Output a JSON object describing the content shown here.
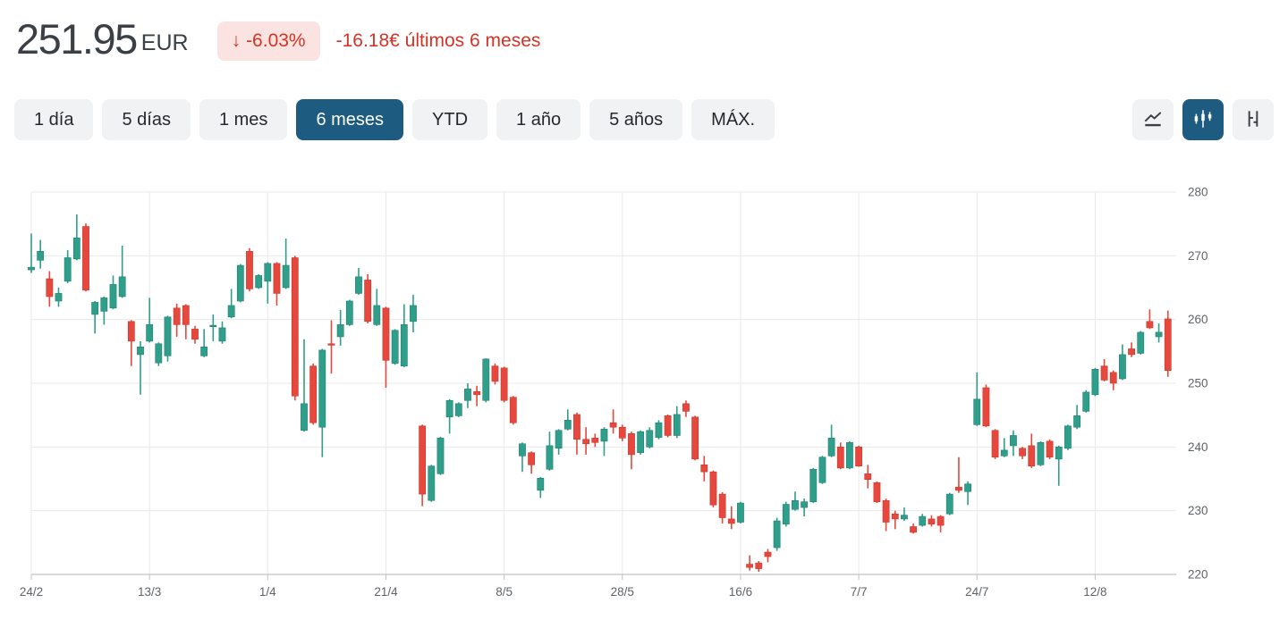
{
  "header": {
    "price": "251.95",
    "currency": "EUR",
    "change_arrow": "↓",
    "change_percent": "-6.03%",
    "change_text": "-16.18€ últimos 6 meses"
  },
  "toolbar": {
    "periods": [
      {
        "label": "1 día",
        "selected": false
      },
      {
        "label": "5 días",
        "selected": false
      },
      {
        "label": "1 mes",
        "selected": false
      },
      {
        "label": "6 meses",
        "selected": true
      },
      {
        "label": "YTD",
        "selected": false
      },
      {
        "label": "1 año",
        "selected": false
      },
      {
        "label": "5 años",
        "selected": false
      },
      {
        "label": "MÁX.",
        "selected": false
      }
    ],
    "chart_types": [
      {
        "icon": "line-chart-icon",
        "selected": false
      },
      {
        "icon": "candlestick-icon",
        "selected": true
      },
      {
        "icon": "ohlc-icon",
        "selected": false
      }
    ]
  },
  "colors": {
    "up": "#2f9e8b",
    "down": "#e6483d",
    "accent": "#1d5b80",
    "negative_text": "#d33426",
    "badge_bg": "#fbe3e1",
    "grid": "#e9e9eb",
    "axis": "#c2c2c6",
    "tick_text": "#5f6368"
  },
  "chart_data": {
    "type": "candlestick",
    "unit": "EUR",
    "period": "6 meses",
    "ylim": [
      220,
      280
    ],
    "y_ticks": [
      220,
      230,
      240,
      250,
      260,
      270,
      280
    ],
    "x_ticks": [
      {
        "label": "24/2",
        "index": 0
      },
      {
        "label": "13/3",
        "index": 13
      },
      {
        "label": "1/4",
        "index": 26
      },
      {
        "label": "21/4",
        "index": 39
      },
      {
        "label": "8/5",
        "index": 52
      },
      {
        "label": "28/5",
        "index": 65
      },
      {
        "label": "16/6",
        "index": 78
      },
      {
        "label": "7/7",
        "index": 91
      },
      {
        "label": "24/7",
        "index": 104
      },
      {
        "label": "12/8",
        "index": 117
      }
    ],
    "candles_format": [
      "open",
      "high",
      "low",
      "close"
    ],
    "candles": [
      [
        267.8,
        273.5,
        267.3,
        268.2
      ],
      [
        269.3,
        272.5,
        268.0,
        270.7
      ],
      [
        266.4,
        267.6,
        262.0,
        263.6
      ],
      [
        262.9,
        265.0,
        262.0,
        264.1
      ],
      [
        266.0,
        270.9,
        265.7,
        269.7
      ],
      [
        269.5,
        276.5,
        269.3,
        272.8
      ],
      [
        274.6,
        275.1,
        264.4,
        264.6
      ],
      [
        260.8,
        262.9,
        257.8,
        262.7
      ],
      [
        261.3,
        263.6,
        259.2,
        263.4
      ],
      [
        261.8,
        266.9,
        261.6,
        265.5
      ],
      [
        263.6,
        271.6,
        263.4,
        266.7
      ],
      [
        259.7,
        259.9,
        252.7,
        256.6
      ],
      [
        254.5,
        256.6,
        248.2,
        255.7
      ],
      [
        256.6,
        263.4,
        256.4,
        259.2
      ],
      [
        253.2,
        256.4,
        252.7,
        256.2
      ],
      [
        254.3,
        260.6,
        253.4,
        260.4
      ],
      [
        261.8,
        262.5,
        257.3,
        259.2
      ],
      [
        262.2,
        262.4,
        256.9,
        259.2
      ],
      [
        258.5,
        259.0,
        256.2,
        256.9
      ],
      [
        254.3,
        258.5,
        254.1,
        255.7
      ],
      [
        258.9,
        260.8,
        256.6,
        259.1
      ],
      [
        256.6,
        259.7,
        256.2,
        258.7
      ],
      [
        260.4,
        264.8,
        260.2,
        262.2
      ],
      [
        262.9,
        268.7,
        262.7,
        268.5
      ],
      [
        270.7,
        271.2,
        264.4,
        264.8
      ],
      [
        265.0,
        267.1,
        264.8,
        266.9
      ],
      [
        266.0,
        269.0,
        262.5,
        268.8
      ],
      [
        268.8,
        269.0,
        262.2,
        264.1
      ],
      [
        265.0,
        272.7,
        264.8,
        268.5
      ],
      [
        269.7,
        270.0,
        247.3,
        248.0
      ],
      [
        242.6,
        256.9,
        242.4,
        246.8
      ],
      [
        252.7,
        253.1,
        243.5,
        243.8
      ],
      [
        243.1,
        255.4,
        238.4,
        255.2
      ],
      [
        256.2,
        259.9,
        251.5,
        256.0
      ],
      [
        257.3,
        261.5,
        255.9,
        259.2
      ],
      [
        259.2,
        263.1,
        259.0,
        262.9
      ],
      [
        264.1,
        268.1,
        263.9,
        266.7
      ],
      [
        266.2,
        267.1,
        259.4,
        259.7
      ],
      [
        259.2,
        264.8,
        259.0,
        262.2
      ],
      [
        261.8,
        262.0,
        249.3,
        253.6
      ],
      [
        253.1,
        258.5,
        252.9,
        258.3
      ],
      [
        252.7,
        262.4,
        252.5,
        259.2
      ],
      [
        259.7,
        263.9,
        258.0,
        262.2
      ],
      [
        243.3,
        243.5,
        230.7,
        232.6
      ],
      [
        231.6,
        237.2,
        231.4,
        237.0
      ],
      [
        235.8,
        241.6,
        235.6,
        241.4
      ],
      [
        244.7,
        247.5,
        242.1,
        247.3
      ],
      [
        244.9,
        247.0,
        244.7,
        246.8
      ],
      [
        247.3,
        250.0,
        246.1,
        249.1
      ],
      [
        248.7,
        249.6,
        246.4,
        248.2
      ],
      [
        247.3,
        253.9,
        247.0,
        253.8
      ],
      [
        252.7,
        253.1,
        249.8,
        250.3
      ],
      [
        252.4,
        252.6,
        247.0,
        247.3
      ],
      [
        247.8,
        248.0,
        243.5,
        243.8
      ],
      [
        238.6,
        240.7,
        236.1,
        240.5
      ],
      [
        239.1,
        239.3,
        235.8,
        237.2
      ],
      [
        233.2,
        235.3,
        232.0,
        235.1
      ],
      [
        236.5,
        242.4,
        236.3,
        240.2
      ],
      [
        239.8,
        242.8,
        238.8,
        242.6
      ],
      [
        242.8,
        245.9,
        242.6,
        244.2
      ],
      [
        245.1,
        245.4,
        238.8,
        241.2
      ],
      [
        241.2,
        243.1,
        238.8,
        240.5
      ],
      [
        241.4,
        242.1,
        240.0,
        240.7
      ],
      [
        240.9,
        243.1,
        238.6,
        242.8
      ],
      [
        243.8,
        245.9,
        242.1,
        243.1
      ],
      [
        243.1,
        243.5,
        240.9,
        241.4
      ],
      [
        242.1,
        242.4,
        236.5,
        238.8
      ],
      [
        239.1,
        242.6,
        238.8,
        242.4
      ],
      [
        240.0,
        243.1,
        239.8,
        242.6
      ],
      [
        241.5,
        244.2,
        241.2,
        243.8
      ],
      [
        244.9,
        245.1,
        241.5,
        241.8
      ],
      [
        241.8,
        246.4,
        241.4,
        245.1
      ],
      [
        246.8,
        247.3,
        244.7,
        245.6
      ],
      [
        244.7,
        244.9,
        237.9,
        238.1
      ],
      [
        237.2,
        238.6,
        234.6,
        236.1
      ],
      [
        236.1,
        236.3,
        230.5,
        230.9
      ],
      [
        232.6,
        232.9,
        228.0,
        228.9
      ],
      [
        228.7,
        230.7,
        227.1,
        228.0
      ],
      [
        228.2,
        231.4,
        228.0,
        231.2
      ],
      [
        221.6,
        223.0,
        220.6,
        221.1
      ],
      [
        221.8,
        222.1,
        220.4,
        220.9
      ],
      [
        223.5,
        224.0,
        221.9,
        222.8
      ],
      [
        224.2,
        228.9,
        223.7,
        228.4
      ],
      [
        227.9,
        231.4,
        227.5,
        231.0
      ],
      [
        230.2,
        233.0,
        230.0,
        231.6
      ],
      [
        230.5,
        231.9,
        229.1,
        231.4
      ],
      [
        231.4,
        236.7,
        231.2,
        236.5
      ],
      [
        234.4,
        238.6,
        234.2,
        238.4
      ],
      [
        238.6,
        243.5,
        238.4,
        241.4
      ],
      [
        240.0,
        240.7,
        236.5,
        236.7
      ],
      [
        236.7,
        240.9,
        236.5,
        240.7
      ],
      [
        240.0,
        240.2,
        236.9,
        237.0
      ],
      [
        235.8,
        237.2,
        233.5,
        234.9
      ],
      [
        234.4,
        234.6,
        231.2,
        231.4
      ],
      [
        231.6,
        231.9,
        226.8,
        228.2
      ],
      [
        229.5,
        230.0,
        227.1,
        228.7
      ],
      [
        228.7,
        230.5,
        228.4,
        229.3
      ],
      [
        227.5,
        228.0,
        226.4,
        226.6
      ],
      [
        227.7,
        229.5,
        227.5,
        229.1
      ],
      [
        228.7,
        229.3,
        227.5,
        227.9
      ],
      [
        229.1,
        229.3,
        226.6,
        227.7
      ],
      [
        229.5,
        232.8,
        229.3,
        232.6
      ],
      [
        233.7,
        238.4,
        232.8,
        233.2
      ],
      [
        233.0,
        234.6,
        230.9,
        234.2
      ],
      [
        243.5,
        251.7,
        243.3,
        247.5
      ],
      [
        249.3,
        249.8,
        243.1,
        243.3
      ],
      [
        242.6,
        242.8,
        238.1,
        238.4
      ],
      [
        238.6,
        241.4,
        238.4,
        239.5
      ],
      [
        240.2,
        242.6,
        238.6,
        241.8
      ],
      [
        239.8,
        240.0,
        238.1,
        238.6
      ],
      [
        240.2,
        242.1,
        236.7,
        237.0
      ],
      [
        237.2,
        240.9,
        237.0,
        240.7
      ],
      [
        240.9,
        241.2,
        238.1,
        238.4
      ],
      [
        238.1,
        240.2,
        233.9,
        240.0
      ],
      [
        239.8,
        243.5,
        239.5,
        243.3
      ],
      [
        243.1,
        246.6,
        242.8,
        244.9
      ],
      [
        245.6,
        248.9,
        245.4,
        248.6
      ],
      [
        248.2,
        252.4,
        248.0,
        252.2
      ],
      [
        252.7,
        253.8,
        250.3,
        250.5
      ],
      [
        251.7,
        252.0,
        248.9,
        250.0
      ],
      [
        250.7,
        256.1,
        250.5,
        254.5
      ],
      [
        255.4,
        256.4,
        254.1,
        254.5
      ],
      [
        254.7,
        258.2,
        254.5,
        258.0
      ],
      [
        259.7,
        261.6,
        258.5,
        258.7
      ],
      [
        257.3,
        259.4,
        256.4,
        258.0
      ],
      [
        260.1,
        261.4,
        251.0,
        252.0
      ]
    ]
  }
}
